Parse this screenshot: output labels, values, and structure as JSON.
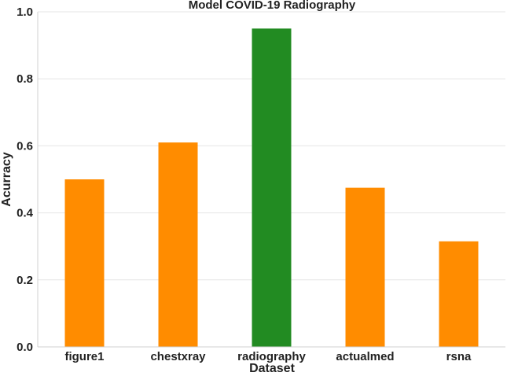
{
  "chart_data": {
    "type": "bar",
    "title": "Model COVID-19 Radiography",
    "xlabel": "Dataset",
    "ylabel": "Acurracy",
    "categories": [
      "figure1",
      "chestxray",
      "radiography",
      "actualmed",
      "rsna"
    ],
    "values": [
      0.5,
      0.61,
      0.95,
      0.475,
      0.315
    ],
    "colors": [
      "#ff8c00",
      "#ff8c00",
      "#228b22",
      "#ff8c00",
      "#ff8c00"
    ],
    "ylim": [
      0,
      1.0
    ],
    "yticks": [
      "0.0",
      "0.2",
      "0.4",
      "0.6",
      "0.8",
      "1.0"
    ],
    "grid": "horizontal",
    "legend": "none"
  }
}
